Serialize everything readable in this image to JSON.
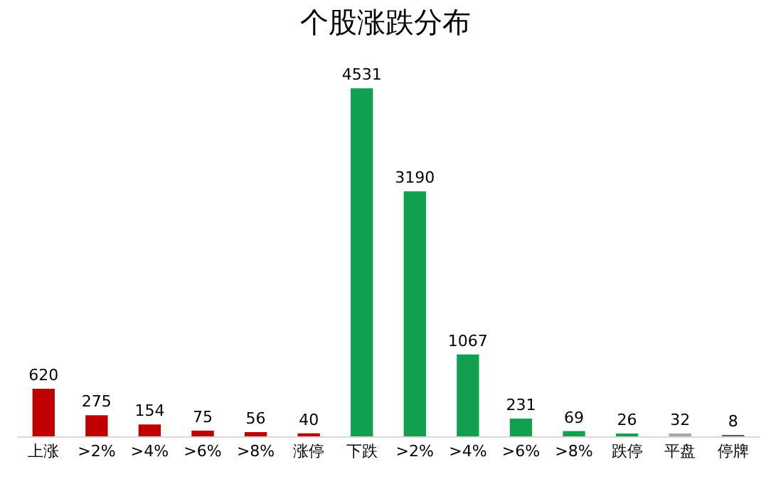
{
  "chart_data": {
    "type": "bar",
    "title": "个股涨跌分布",
    "categories": [
      "上涨",
      ">2%",
      ">4%",
      ">6%",
      ">8%",
      "涨停",
      "下跌",
      ">2%",
      ">4%",
      ">6%",
      ">8%",
      "跌停",
      "平盘",
      "停牌"
    ],
    "values": [
      620,
      275,
      154,
      75,
      56,
      40,
      4531,
      3190,
      1067,
      231,
      69,
      26,
      32,
      8
    ],
    "colors": [
      "#c00000",
      "#c00000",
      "#c00000",
      "#c00000",
      "#c00000",
      "#c00000",
      "#10a050",
      "#10a050",
      "#10a050",
      "#10a050",
      "#10a050",
      "#10a050",
      "#a6a6a6",
      "#595959"
    ],
    "data_labels": true
  }
}
